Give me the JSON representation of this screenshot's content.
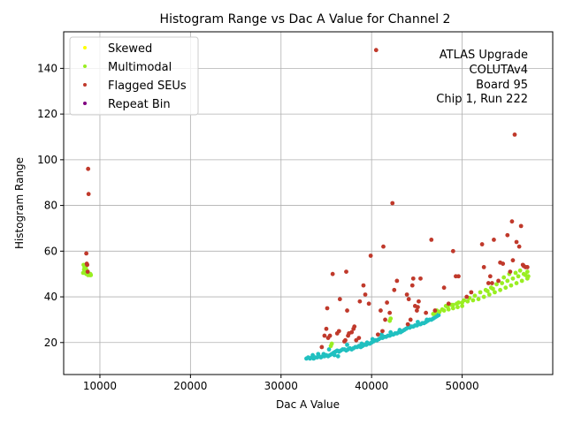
{
  "chart_data": {
    "type": "scatter",
    "title": "Histogram Range vs Dac A Value for Channel 2",
    "xlabel": "Dac A Value",
    "ylabel": "Histogram Range",
    "xlim": [
      6000,
      60000
    ],
    "ylim": [
      6,
      156
    ],
    "xticks": [
      10000,
      20000,
      30000,
      40000,
      50000
    ],
    "yticks": [
      20,
      40,
      60,
      80,
      100,
      120,
      140
    ],
    "grid": true,
    "legend_position": "top-left",
    "annotation_lines": [
      "ATLAS Upgrade",
      "COLUTAv4",
      "Board 95",
      "Chip 1, Run 222"
    ],
    "series": [
      {
        "name": "Skewed",
        "color": "#ffff00",
        "points": []
      },
      {
        "name": "Multimodal",
        "color": "#99ee22",
        "points": [
          [
            8200,
            54
          ],
          [
            8300,
            53
          ],
          [
            8250,
            52
          ],
          [
            8400,
            51
          ],
          [
            8350,
            50.5
          ],
          [
            8500,
            50
          ],
          [
            8600,
            50
          ],
          [
            8700,
            49.5
          ],
          [
            8800,
            50
          ],
          [
            8900,
            49.5
          ],
          [
            9000,
            49.5
          ],
          [
            8450,
            52.5
          ],
          [
            8550,
            51.5
          ],
          [
            8650,
            51
          ],
          [
            8150,
            50.5
          ],
          [
            8950,
            50
          ],
          [
            35500,
            18.5
          ],
          [
            35600,
            19.5
          ],
          [
            42000,
            29.5
          ],
          [
            42100,
            30.5
          ],
          [
            47000,
            33
          ],
          [
            47500,
            33.5
          ],
          [
            48000,
            34
          ],
          [
            48500,
            34.5
          ],
          [
            49000,
            35
          ],
          [
            49500,
            35.5
          ],
          [
            50000,
            36
          ],
          [
            48200,
            36
          ],
          [
            48800,
            36.5
          ],
          [
            49400,
            37
          ],
          [
            50000,
            37.5
          ],
          [
            50600,
            38
          ],
          [
            51200,
            38.5
          ],
          [
            51800,
            39
          ],
          [
            52400,
            40
          ],
          [
            53000,
            41
          ],
          [
            53600,
            42
          ],
          [
            54200,
            43
          ],
          [
            54800,
            44
          ],
          [
            55400,
            45
          ],
          [
            56000,
            46
          ],
          [
            56600,
            47
          ],
          [
            57200,
            48
          ],
          [
            55000,
            47
          ],
          [
            55600,
            48
          ],
          [
            56200,
            49
          ],
          [
            56800,
            50
          ],
          [
            57200,
            51
          ],
          [
            57000,
            49.5
          ],
          [
            52000,
            42
          ],
          [
            52600,
            43
          ],
          [
            53200,
            44
          ],
          [
            53800,
            45.5
          ],
          [
            54400,
            46
          ],
          [
            51400,
            40.5
          ],
          [
            50800,
            39.5
          ],
          [
            50200,
            38.5
          ],
          [
            49600,
            37.5
          ],
          [
            49000,
            36.5
          ],
          [
            48400,
            35.5
          ],
          [
            47800,
            34.5
          ],
          [
            55900,
            50.5
          ],
          [
            56400,
            51.5
          ],
          [
            54600,
            48.5
          ],
          [
            55200,
            50
          ],
          [
            53400,
            43.5
          ],
          [
            52800,
            42.5
          ],
          [
            47200,
            34
          ],
          [
            46800,
            32.5
          ],
          [
            57300,
            49
          ]
        ]
      },
      {
        "name": "Flagged SEUs",
        "color": "#c0392b",
        "points": [
          [
            8500,
            59
          ],
          [
            8600,
            54
          ],
          [
            8700,
            96
          ],
          [
            8750,
            85
          ],
          [
            8650,
            51
          ],
          [
            8550,
            54.5
          ],
          [
            34500,
            18
          ],
          [
            34800,
            23
          ],
          [
            35000,
            26
          ],
          [
            35100,
            35
          ],
          [
            35200,
            22
          ],
          [
            35400,
            23
          ],
          [
            35700,
            50
          ],
          [
            36200,
            24
          ],
          [
            36400,
            25
          ],
          [
            36500,
            39
          ],
          [
            37000,
            20.5
          ],
          [
            37100,
            21
          ],
          [
            37200,
            51
          ],
          [
            37300,
            34
          ],
          [
            37400,
            23
          ],
          [
            37500,
            24
          ],
          [
            37800,
            24.5
          ],
          [
            38000,
            26
          ],
          [
            38100,
            27
          ],
          [
            38300,
            21
          ],
          [
            38600,
            22
          ],
          [
            38700,
            38
          ],
          [
            39100,
            45
          ],
          [
            39300,
            41
          ],
          [
            39700,
            37
          ],
          [
            39900,
            58
          ],
          [
            40500,
            148
          ],
          [
            40700,
            23.5
          ],
          [
            41000,
            34
          ],
          [
            41200,
            25
          ],
          [
            41300,
            62
          ],
          [
            41500,
            30
          ],
          [
            41700,
            37.5
          ],
          [
            42000,
            33
          ],
          [
            42300,
            81
          ],
          [
            42500,
            43
          ],
          [
            42800,
            47
          ],
          [
            43900,
            41
          ],
          [
            44100,
            39
          ],
          [
            44300,
            30
          ],
          [
            44500,
            45
          ],
          [
            44600,
            48
          ],
          [
            44800,
            36
          ],
          [
            45000,
            34
          ],
          [
            45100,
            35.5
          ],
          [
            45200,
            38
          ],
          [
            45400,
            48
          ],
          [
            46600,
            65
          ],
          [
            47000,
            34
          ],
          [
            48000,
            44
          ],
          [
            49000,
            60
          ],
          [
            49300,
            49
          ],
          [
            49600,
            49
          ],
          [
            51000,
            42
          ],
          [
            52200,
            63
          ],
          [
            52400,
            53
          ],
          [
            52900,
            46
          ],
          [
            53100,
            49
          ],
          [
            53300,
            46
          ],
          [
            53500,
            65
          ],
          [
            54000,
            47
          ],
          [
            54200,
            55
          ],
          [
            54500,
            54.5
          ],
          [
            55000,
            67
          ],
          [
            55300,
            51
          ],
          [
            55500,
            73
          ],
          [
            55600,
            56
          ],
          [
            55800,
            111
          ],
          [
            56000,
            64
          ],
          [
            56300,
            62
          ],
          [
            56500,
            71
          ],
          [
            56700,
            54
          ],
          [
            56800,
            53.5
          ],
          [
            57000,
            53
          ],
          [
            57200,
            53
          ],
          [
            44000,
            28
          ],
          [
            46000,
            33
          ],
          [
            48500,
            37
          ],
          [
            50500,
            40
          ]
        ]
      },
      {
        "name": "Repeat Bin",
        "color": "#800080",
        "points": []
      },
      {
        "name": "",
        "color": "#20c0c0",
        "points": [
          [
            32800,
            13
          ],
          [
            33000,
            13.5
          ],
          [
            33200,
            13
          ],
          [
            33400,
            13.5
          ],
          [
            33600,
            13
          ],
          [
            33800,
            13.5
          ],
          [
            34000,
            13.5
          ],
          [
            34200,
            14
          ],
          [
            34400,
            13.5
          ],
          [
            34600,
            14
          ],
          [
            34800,
            14
          ],
          [
            35000,
            14.5
          ],
          [
            35200,
            14
          ],
          [
            35400,
            14.5
          ],
          [
            35600,
            15
          ],
          [
            35800,
            15.5
          ],
          [
            36000,
            16
          ],
          [
            36200,
            16.5
          ],
          [
            36400,
            16
          ],
          [
            36600,
            16.5
          ],
          [
            36800,
            17
          ],
          [
            37000,
            17
          ],
          [
            37200,
            16.5
          ],
          [
            37400,
            17
          ],
          [
            37600,
            17.5
          ],
          [
            37800,
            17
          ],
          [
            38000,
            17.5
          ],
          [
            38200,
            18
          ],
          [
            38400,
            18
          ],
          [
            38600,
            18.5
          ],
          [
            38800,
            18
          ],
          [
            39000,
            18.5
          ],
          [
            39200,
            19
          ],
          [
            39400,
            19
          ],
          [
            39600,
            19.5
          ],
          [
            39800,
            19.5
          ],
          [
            40000,
            20
          ],
          [
            40200,
            20.5
          ],
          [
            40400,
            21
          ],
          [
            40600,
            21
          ],
          [
            40800,
            21.5
          ],
          [
            41000,
            22
          ],
          [
            41200,
            22
          ],
          [
            41400,
            22.5
          ],
          [
            41600,
            22.5
          ],
          [
            41800,
            23
          ],
          [
            42000,
            23
          ],
          [
            42200,
            23.5
          ],
          [
            42400,
            23.5
          ],
          [
            42600,
            24
          ],
          [
            42800,
            24
          ],
          [
            43000,
            24.5
          ],
          [
            43200,
            24.5
          ],
          [
            43400,
            25
          ],
          [
            43600,
            25.5
          ],
          [
            43800,
            26
          ],
          [
            44000,
            26.5
          ],
          [
            44200,
            26.5
          ],
          [
            44400,
            27
          ],
          [
            44600,
            27
          ],
          [
            44800,
            27.5
          ],
          [
            45000,
            27.5
          ],
          [
            45200,
            28
          ],
          [
            45400,
            28
          ],
          [
            45600,
            28.5
          ],
          [
            45800,
            28.5
          ],
          [
            46000,
            29
          ],
          [
            46200,
            29.5
          ],
          [
            46400,
            30
          ],
          [
            46600,
            30
          ],
          [
            46800,
            30.5
          ],
          [
            47000,
            31
          ],
          [
            47200,
            31.5
          ],
          [
            47400,
            32
          ],
          [
            35300,
            17
          ],
          [
            35900,
            14.5
          ],
          [
            36300,
            14
          ],
          [
            33500,
            14.5
          ],
          [
            34100,
            15
          ],
          [
            34700,
            15
          ],
          [
            37300,
            19
          ],
          [
            38900,
            19.5
          ],
          [
            39500,
            20
          ],
          [
            40100,
            21.5
          ],
          [
            41100,
            23.5
          ],
          [
            42100,
            24.5
          ],
          [
            43100,
            25.5
          ],
          [
            44100,
            27.5
          ],
          [
            45100,
            29
          ],
          [
            46100,
            30
          ],
          [
            47100,
            32.5
          ]
        ]
      }
    ]
  }
}
